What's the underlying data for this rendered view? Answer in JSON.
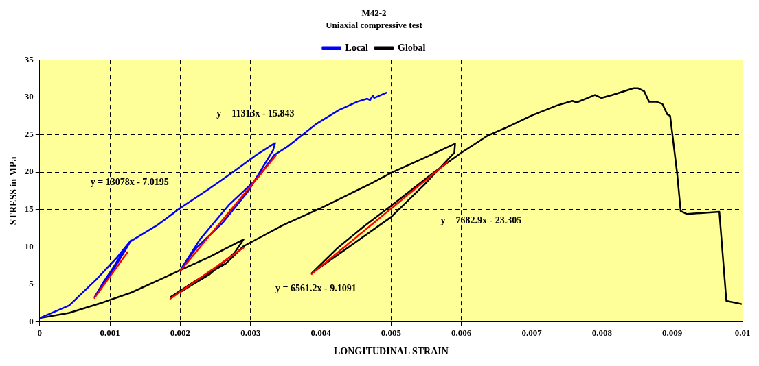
{
  "chart_data": {
    "type": "line",
    "title": "M42-2",
    "subtitle": "Uniaxial compressive test",
    "xlabel": "LONGITUDINAL STRAIN",
    "ylabel": "STRESS in MPa",
    "xlim": [
      0,
      0.01
    ],
    "xticks": [
      0,
      0.001,
      0.002,
      0.003,
      0.004,
      0.005,
      0.006,
      0.007,
      0.008,
      0.009,
      0.01
    ],
    "ylim": [
      0,
      35
    ],
    "yticks": [
      0,
      5,
      10,
      15,
      20,
      25,
      30,
      35
    ],
    "grid": true,
    "legend": "top",
    "marker": "none",
    "line_style": "solid",
    "series": [
      {
        "name": "Local",
        "color": "#0000ff",
        "x": [
          0,
          0.00042,
          0.0008,
          0.0011,
          0.0013,
          0.00122,
          0.001,
          0.00078,
          0.0009,
          0.00105,
          0.00118,
          0.0013,
          0.00167,
          0.002,
          0.0024,
          0.00275,
          0.0031,
          0.00335,
          0.00332,
          0.00297,
          0.0026,
          0.00222,
          0.002,
          0.00228,
          0.0027,
          0.0031,
          0.00334,
          0.00354,
          0.00393,
          0.00426,
          0.00452,
          0.00466,
          0.0047,
          0.00474,
          0.00476,
          0.00493
        ],
        "values": [
          0.5,
          2.2,
          5.6,
          8.6,
          10.9,
          9.6,
          6.3,
          3.3,
          5.2,
          7.3,
          9.3,
          10.8,
          12.9,
          15.2,
          17.7,
          20.0,
          22.4,
          23.9,
          22.9,
          17.5,
          13.2,
          9.8,
          6.9,
          11.0,
          15.7,
          19.2,
          22.3,
          23.5,
          26.4,
          28.3,
          29.4,
          29.8,
          29.6,
          30.2,
          29.9,
          30.6
        ]
      },
      {
        "name": "Global",
        "color": "#000000",
        "x": [
          0,
          0.00042,
          0.0009,
          0.0013,
          0.0017,
          0.002,
          0.0024,
          0.0029,
          0.00277,
          0.00241,
          0.00202,
          0.00186,
          0.00222,
          0.00265,
          0.0029,
          0.00312,
          0.00346,
          0.004,
          0.00472,
          0.005,
          0.0055,
          0.00591,
          0.0059,
          0.00547,
          0.005,
          0.00449,
          0.00387,
          0.00423,
          0.00462,
          0.005,
          0.0056,
          0.006,
          0.00638,
          0.00665,
          0.00701,
          0.00736,
          0.00758,
          0.00764,
          0.0079,
          0.00799,
          0.00815,
          0.00845,
          0.00851,
          0.0086,
          0.00867,
          0.00877,
          0.00886,
          0.00893,
          0.00897,
          0.00907,
          0.00912,
          0.00921,
          0.00967,
          0.00977,
          0.00998
        ],
        "values": [
          0.5,
          1.2,
          2.6,
          3.9,
          5.6,
          6.9,
          8.6,
          11.0,
          9.2,
          6.3,
          4.1,
          3.3,
          5.5,
          7.8,
          10.1,
          11.2,
          12.9,
          15.2,
          18.5,
          19.9,
          22.0,
          23.8,
          22.6,
          18.3,
          14.0,
          10.6,
          6.5,
          9.8,
          12.8,
          15.5,
          19.9,
          22.6,
          24.9,
          26.0,
          27.6,
          28.9,
          29.5,
          29.3,
          30.3,
          29.9,
          30.3,
          31.2,
          31.2,
          30.8,
          29.4,
          29.4,
          29.1,
          27.7,
          27.5,
          19.8,
          14.8,
          14.4,
          14.7,
          2.8,
          2.4
        ]
      },
      {
        "type": "line",
        "color": "#ff0000",
        "line_style": "dashed",
        "x": [
          0.00078,
          0.00125
        ],
        "values": [
          3.2,
          9.3
        ]
      },
      {
        "type": "line",
        "color": "#ff0000",
        "line_style": "dashed",
        "x": [
          0.002,
          0.00336
        ],
        "values": [
          6.8,
          22.2
        ]
      },
      {
        "type": "line",
        "color": "#ff0000",
        "line_style": "dashed",
        "x": [
          0.00186,
          0.0029
        ],
        "values": [
          3.1,
          9.9
        ]
      },
      {
        "type": "line",
        "color": "#ff0000",
        "line_style": "dashed",
        "x": [
          0.00387,
          0.0058
        ],
        "values": [
          6.4,
          21.3
        ]
      }
    ],
    "annotations": [
      "y = 11313x - 15.843",
      "y = 13078x - 7.0195",
      "y = 6561.2x - 9.1091",
      "y = 7682.9x - 23.305"
    ]
  }
}
